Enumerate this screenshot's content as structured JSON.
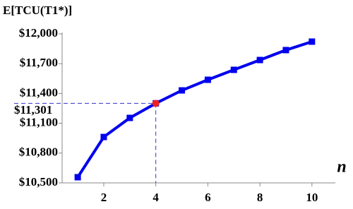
{
  "chart_data": {
    "type": "line",
    "title": "E[TCU(T1*)]",
    "x_label": "n",
    "x": [
      1,
      2,
      3,
      4,
      5,
      6,
      7,
      8,
      9,
      10
    ],
    "series": [
      {
        "name": "E[TCU(T1*)]",
        "color": "#0000ee",
        "values": [
          10557,
          10962,
          11154,
          11301,
          11431,
          11538,
          11638,
          11737,
          11837,
          11922
        ]
      }
    ],
    "xlim": [
      0.4,
      10.9
    ],
    "xticks": [
      2,
      4,
      6,
      8,
      10
    ],
    "ylim": [
      10500,
      12000
    ],
    "yticks": [
      {
        "value": 10500,
        "label": "$10,500"
      },
      {
        "value": 10800,
        "label": "$10,800"
      },
      {
        "value": 11100,
        "label": "$11,100"
      },
      {
        "value": 11400,
        "label": "$11,400"
      },
      {
        "value": 11700,
        "label": "$11,700"
      },
      {
        "value": 12000,
        "label": "$12,000"
      }
    ],
    "annotation": {
      "x": 4,
      "y": 11301,
      "label": "$11,301",
      "color": "#ee2222",
      "label_color": "#3333cc"
    },
    "grid": false
  }
}
